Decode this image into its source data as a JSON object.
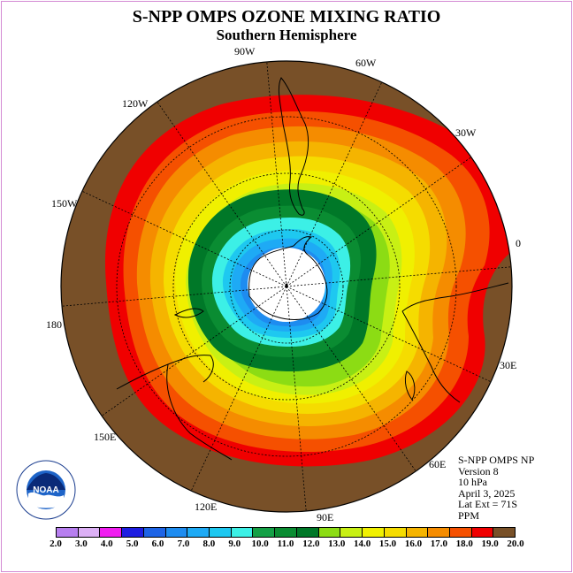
{
  "title": "S-NPP OMPS OZONE MIXING RATIO",
  "subtitle": "Southern Hemisphere",
  "longitude_labels": {
    "lon_90w": "90W",
    "lon_60w": "60W",
    "lon_30w": "30W",
    "lon_0": "0",
    "lon_30e": "30E",
    "lon_60e": "60E",
    "lon_90e": "90E",
    "lon_120e": "120E",
    "lon_150e": "150E",
    "lon_180": "180",
    "lon_150w": "150W",
    "lon_120w": "120W"
  },
  "info": {
    "instrument": "S-NPP OMPS NP",
    "version": "Version 8",
    "level": "10 hPa",
    "date": "April 3, 2025",
    "lat_ext": "Lat Ext = 71S",
    "units": "PPM"
  },
  "logo": {
    "text": "NOAA",
    "ring_text": "NATIONAL OCEANIC AND ATMOSPHERIC ADMINISTRATION · U.S. DEPARTMENT OF COMMERCE",
    "icon": "noaa-logo-icon"
  },
  "colorbar": {
    "colors": [
      "#b77fef",
      "#dcb0f5",
      "#f01ef0",
      "#1e1ee1",
      "#1e64e6",
      "#1e8cf0",
      "#1eaaf5",
      "#1ec8f0",
      "#3cf0e6",
      "#14a046",
      "#0a8c32",
      "#007828",
      "#8cdc14",
      "#c8f014",
      "#f0f000",
      "#f5dc00",
      "#f5b400",
      "#f58c00",
      "#f55000",
      "#f00000",
      "#785028"
    ],
    "ticks": [
      "2.0",
      "3.0",
      "4.0",
      "5.0",
      "6.0",
      "7.0",
      "8.0",
      "9.0",
      "10.0",
      "11.0",
      "12.0",
      "13.0",
      "14.0",
      "15.0",
      "16.0",
      "17.0",
      "18.0",
      "19.0",
      "20.0"
    ]
  },
  "map_data": {
    "projection": "south polar stereographic",
    "lat_extent": -71,
    "field": "ozone mixing ratio",
    "units": "PPM",
    "pressure_level_hpa": 10,
    "contour_levels": [
      2,
      3,
      4,
      5,
      6,
      7,
      8,
      9,
      10,
      11,
      12,
      13,
      14,
      15,
      16,
      17,
      18,
      19,
      20
    ],
    "outer_ring_value": 20
  }
}
